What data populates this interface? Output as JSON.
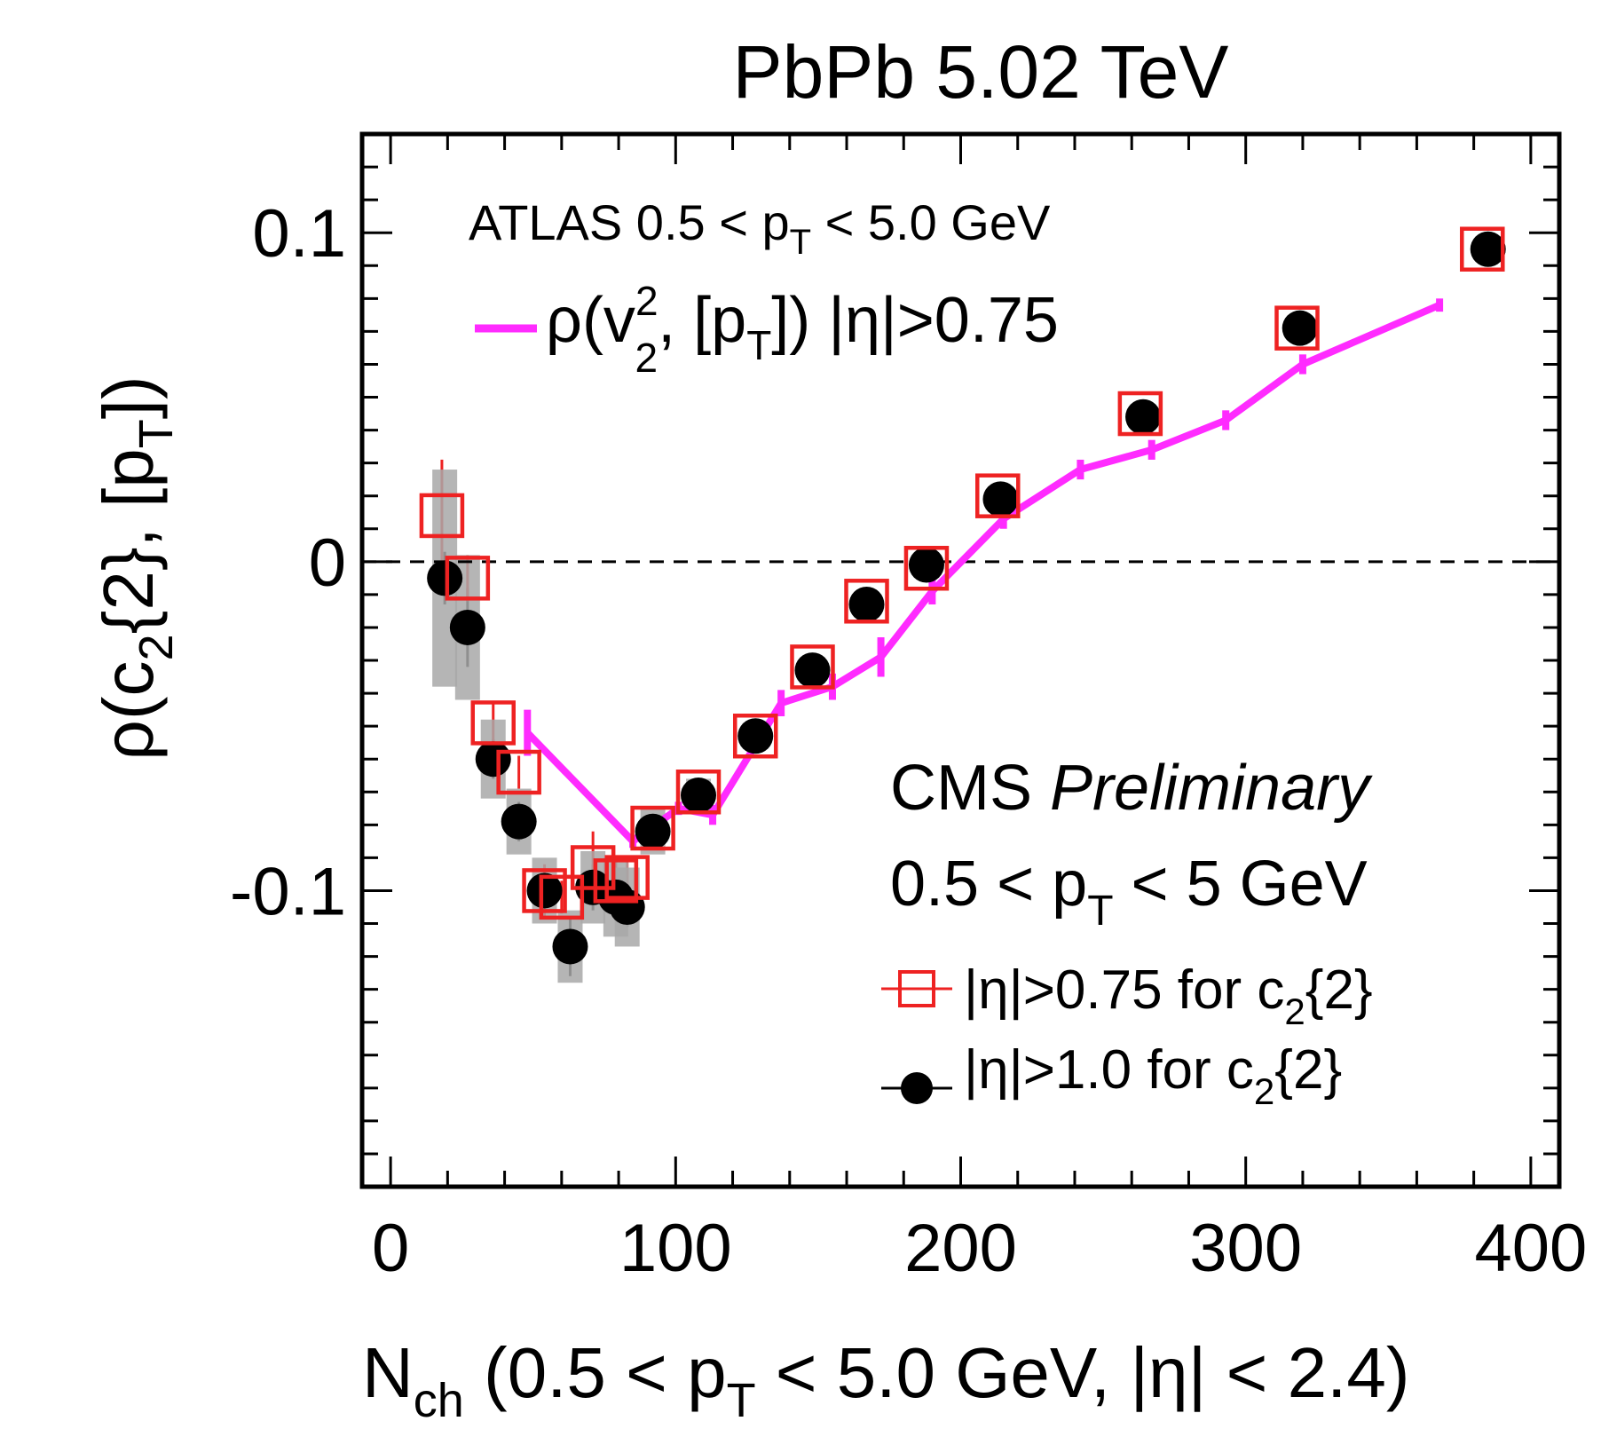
{
  "chart_data": {
    "type": "scatter",
    "title": "PbPb 5.02 TeV",
    "xlabel": {
      "main": "N",
      "sub": "ch",
      "rest1": " (0.5 < p",
      "sub2": "T",
      "rest2": " < 5.0 GeV, |η| < 2.4)"
    },
    "ylabel": {
      "pre": "ρ(c",
      "sub": "2",
      "mid": "{2}, [p",
      "sub2": "T",
      "post": "])"
    },
    "xlim": [
      -10,
      410
    ],
    "ylim": [
      -0.19,
      0.13
    ],
    "xticks": [
      0,
      100,
      200,
      300,
      400
    ],
    "xtick_labels": [
      "0",
      "100",
      "200",
      "300",
      "400"
    ],
    "yticks": [
      -0.1,
      0,
      0.1
    ],
    "ytick_labels": [
      "-0.1",
      "0",
      "0.1"
    ],
    "grid": false,
    "reference_line": {
      "y": 0,
      "style": "dashed"
    },
    "atlas_header": {
      "pre": "ATLAS 0.5 < p",
      "sub": "T",
      "post": " < 5.0 GeV"
    },
    "atlas_legend": {
      "pre": "ρ(v",
      "sup": "2",
      "sub": "2",
      "mid": ", [p",
      "sub2": "T",
      "post": "]) |η|>0.75"
    },
    "cms_label": {
      "bold": "CMS",
      "italic": "Preliminary"
    },
    "cms_range": {
      "pre": "0.5 < p",
      "sub": "T",
      "post": " < 5 GeV"
    },
    "series": [
      {
        "name": "|η|>0.75 for c2{2}",
        "legend": {
          "pre": "|η|>0.75 for c",
          "sub": "2",
          "post": "{2}"
        },
        "marker": "open-square",
        "color": "#ee2222",
        "x": [
          18,
          27,
          36,
          45,
          54,
          60,
          71,
          79,
          83,
          92,
          108,
          128,
          148,
          167,
          188,
          213,
          263,
          318,
          383
        ],
        "y": [
          0.014,
          -0.005,
          -0.049,
          -0.064,
          -0.1,
          -0.102,
          -0.093,
          -0.097,
          -0.096,
          -0.081,
          -0.07,
          -0.053,
          -0.032,
          -0.012,
          -0.002,
          0.02,
          0.045,
          0.071,
          0.095
        ],
        "err": [
          0.017,
          0.007,
          0.006,
          0.005,
          0.008,
          0.005,
          0.011,
          0.006,
          0.006,
          0.004,
          0.004,
          0.003,
          0.003,
          0.002,
          0.002,
          0.002,
          0.002,
          0.002,
          0.002
        ]
      },
      {
        "name": "|η|>1.0 for c2{2}",
        "legend": {
          "pre": "|η|>1.0 for c",
          "sub": "2",
          "post": "{2}"
        },
        "marker": "filled-circle",
        "color": "#000000",
        "x": [
          19,
          27,
          36,
          45,
          54,
          63,
          71,
          79,
          83,
          92,
          108,
          128,
          148,
          167,
          188,
          214,
          264,
          319,
          385
        ],
        "y": [
          -0.005,
          -0.02,
          -0.06,
          -0.079,
          -0.1,
          -0.117,
          -0.099,
          -0.102,
          -0.105,
          -0.082,
          -0.071,
          -0.053,
          -0.033,
          -0.013,
          -0.001,
          0.019,
          0.044,
          0.071,
          0.095
        ],
        "err": [
          0.008,
          0.012,
          0.006,
          0.006,
          0.006,
          0.009,
          0.007,
          0.006,
          0.006,
          0.004,
          0.004,
          0.003,
          0.003,
          0.002,
          0.002,
          0.002,
          0.002,
          0.002,
          0.002
        ],
        "syst": [
          0.033,
          0.022,
          0.012,
          0.01,
          0.01,
          0.011,
          0.011,
          0.012,
          0.012,
          0.007,
          0.005,
          0.004,
          0.004,
          0.003,
          0.003,
          0.003,
          0.003,
          0.003,
          0.003
        ]
      },
      {
        "name": "ρ(v2^2, [pT]) |η|>0.75 (ATLAS)",
        "marker": "line",
        "color": "#ff2bff",
        "x": [
          48,
          85,
          101,
          113,
          137,
          155,
          172,
          190,
          215,
          242,
          267,
          293,
          320,
          368
        ],
        "y": [
          -0.052,
          -0.085,
          -0.075,
          -0.077,
          -0.043,
          -0.038,
          -0.029,
          -0.009,
          0.013,
          0.028,
          0.034,
          0.043,
          0.06,
          0.078
        ],
        "err": [
          0.007,
          0.002,
          0.002,
          0.003,
          0.004,
          0.004,
          0.006,
          0.004,
          0.003,
          0.003,
          0.003,
          0.003,
          0.003,
          0.002
        ]
      }
    ]
  }
}
